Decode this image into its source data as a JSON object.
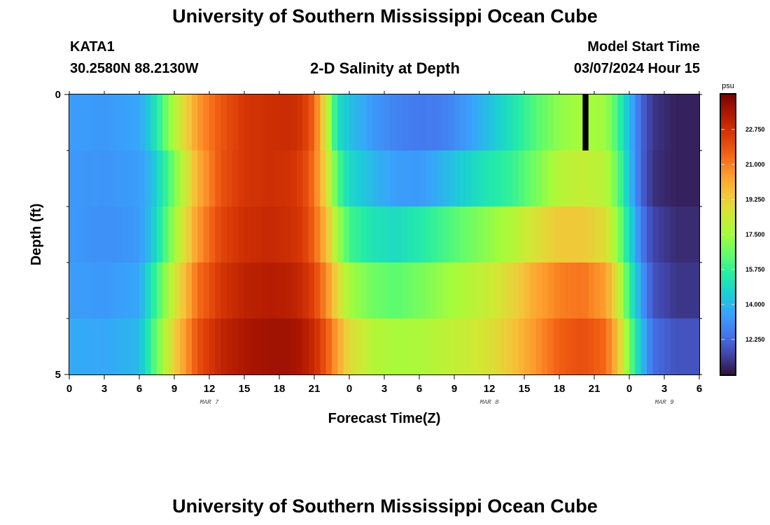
{
  "page": {
    "title_top": "University of Southern Mississippi Ocean Cube",
    "title_bottom": "University of Southern Mississippi Ocean Cube",
    "station": "KATA1",
    "coords": "30.2580N  88.2130W",
    "subtitle": "2-D Salinity at Depth",
    "model_start_label": "Model Start Time",
    "model_start_value": "03/07/2024 Hour 15"
  },
  "chart_data": {
    "type": "heatmap",
    "title": "2-D Salinity at Depth",
    "xlabel": "Forecast Time(Z)",
    "ylabel": "Depth (ft)",
    "x_tick_labels": [
      "0",
      "3",
      "6",
      "9",
      "12",
      "15",
      "18",
      "21",
      "0",
      "3",
      "6",
      "9",
      "12",
      "15",
      "18",
      "21",
      "0",
      "3",
      "6"
    ],
    "x_range_hours": [
      0,
      54
    ],
    "date_labels": [
      {
        "hour": 12,
        "label": "MAR 7"
      },
      {
        "hour": 36,
        "label": "MAR 8"
      },
      {
        "hour": 51,
        "label": "MAR 9"
      }
    ],
    "y_tick_labels": [
      "0",
      "5"
    ],
    "y_range_ft": [
      0,
      5
    ],
    "depth_levels_ft": [
      0,
      1,
      2,
      3,
      4,
      5
    ],
    "colorbar": {
      "unit": "psu",
      "range": [
        10.5,
        24.5
      ],
      "tick_values": [
        12.25,
        14.0,
        15.75,
        17.5,
        19.25,
        21.0,
        22.75
      ],
      "tick_labels": [
        "12.250",
        "14.000",
        "15.750",
        "17.500",
        "19.250",
        "21.000",
        "22.750"
      ],
      "colors": [
        "#30123b",
        "#4145ab",
        "#4675ed",
        "#39a2fc",
        "#1bcfd4",
        "#24eca6",
        "#61fc6c",
        "#a4fc3b",
        "#d1e834",
        "#f3c63a",
        "#fe9b2d",
        "#f36315",
        "#d93806",
        "#b11901",
        "#7a0403"
      ]
    },
    "salinity_keyframes": {
      "hours": [
        0,
        3,
        6,
        7,
        9,
        11,
        13,
        15,
        17,
        19,
        20,
        21,
        22,
        23,
        24,
        26,
        28,
        30,
        32,
        34,
        36,
        38,
        40,
        42,
        44,
        46,
        47,
        48,
        49,
        50,
        52,
        54
      ],
      "rows": [
        [
          13.4,
          13.3,
          13.6,
          14.6,
          17.8,
          20.5,
          21.8,
          22.6,
          22.8,
          22.9,
          22.6,
          21.5,
          18.5,
          15.0,
          14.2,
          13.3,
          12.8,
          12.6,
          12.7,
          13.3,
          14.2,
          15.2,
          16.3,
          17.2,
          17.6,
          17.4,
          16.0,
          14.0,
          12.2,
          11.2,
          10.8,
          10.8
        ],
        [
          13.3,
          13.2,
          13.4,
          14.0,
          16.8,
          20.0,
          21.9,
          22.6,
          22.8,
          22.7,
          22.3,
          21.2,
          19.0,
          16.2,
          14.8,
          14.0,
          13.4,
          13.3,
          13.9,
          14.6,
          15.3,
          15.8,
          16.8,
          17.9,
          18.2,
          17.9,
          16.5,
          14.2,
          12.2,
          11.1,
          10.8,
          10.8
        ],
        [
          13.3,
          13.1,
          13.3,
          14.2,
          17.4,
          20.5,
          22.2,
          22.8,
          23.0,
          22.8,
          22.5,
          21.5,
          19.8,
          17.5,
          16.0,
          15.2,
          14.9,
          15.4,
          16.0,
          16.6,
          17.2,
          17.8,
          18.7,
          19.4,
          19.4,
          18.8,
          17.2,
          14.9,
          12.7,
          11.5,
          11.0,
          11.0
        ],
        [
          13.4,
          13.3,
          13.6,
          15.2,
          18.4,
          21.3,
          22.6,
          23.2,
          23.4,
          23.3,
          22.9,
          22.2,
          20.8,
          19.0,
          17.5,
          16.7,
          16.4,
          16.8,
          17.3,
          17.8,
          18.3,
          19.1,
          20.2,
          21.0,
          21.2,
          20.4,
          18.5,
          15.8,
          13.4,
          11.8,
          11.2,
          11.2
        ],
        [
          13.7,
          13.6,
          14.0,
          15.8,
          19.2,
          21.9,
          23.1,
          23.6,
          23.8,
          23.8,
          23.5,
          22.9,
          21.8,
          20.3,
          18.9,
          17.9,
          17.6,
          17.7,
          18.0,
          18.3,
          18.7,
          19.5,
          20.6,
          21.6,
          22.0,
          21.4,
          19.6,
          16.8,
          14.2,
          12.4,
          11.8,
          11.8
        ],
        [
          14.0,
          14.0,
          14.8,
          16.8,
          20.0,
          22.4,
          23.4,
          23.9,
          24.1,
          24.1,
          23.9,
          23.4,
          22.4,
          21.0,
          19.5,
          18.4,
          18.1,
          18.6,
          19.2,
          19.7,
          20.2,
          20.9,
          21.6,
          22.2,
          22.5,
          21.8,
          19.8,
          17.0,
          14.4,
          12.8,
          12.2,
          12.2
        ]
      ],
      "missing_cell": {
        "hour": 44,
        "row": 0
      }
    }
  }
}
